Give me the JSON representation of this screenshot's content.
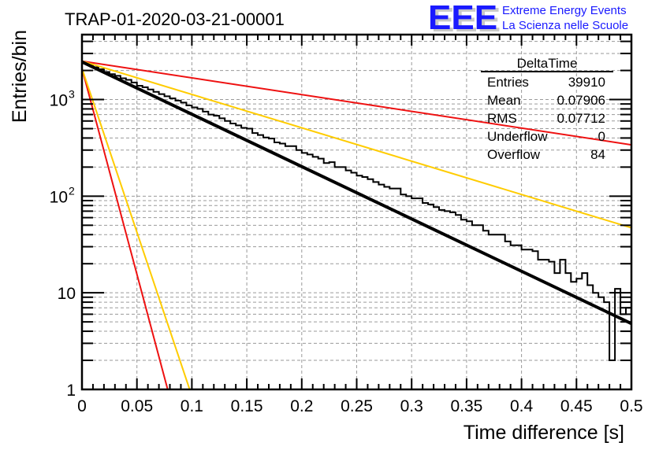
{
  "header": {
    "title": "TRAP-01-2020-03-21-00001",
    "logo_text": "EEE",
    "logo_line1": "Extreme Energy Events",
    "logo_line2": "La Scienza nelle Scuole",
    "logo_color": "#1a1aff"
  },
  "stats_box": {
    "name": "DeltaTime",
    "rows": [
      {
        "label": "Entries",
        "value": "39910"
      },
      {
        "label": "Mean",
        "value": "0.07906"
      },
      {
        "label": "RMS",
        "value": "0.07712"
      },
      {
        "label": "Underflow",
        "value": "0"
      },
      {
        "label": "Overflow",
        "value": "84"
      }
    ]
  },
  "chart_data": {
    "type": "line",
    "title": "TRAP-01-2020-03-21-00001",
    "xlabel": "Time difference [s]",
    "ylabel": "Entries/bin",
    "xlim": [
      0,
      0.5
    ],
    "ylim": [
      1,
      4700
    ],
    "yscale": "log",
    "grid": true,
    "x_tick_labels": [
      "0",
      "0.05",
      "0.1",
      "0.15",
      "0.2",
      "0.25",
      "0.3",
      "0.35",
      "0.4",
      "0.45",
      "0.5"
    ],
    "y_tick_labels": [
      {
        "value": 1,
        "label": "1"
      },
      {
        "value": 10,
        "label": "10"
      },
      {
        "value": 100,
        "label": "10",
        "sup": "2"
      },
      {
        "value": 1000,
        "label": "10",
        "sup": "3"
      }
    ],
    "histogram": {
      "name": "DeltaTime",
      "bin_width": 0.005,
      "x_start": 0,
      "color": "#000000",
      "values": [
        2380,
        2270,
        2160,
        2060,
        1930,
        1830,
        1760,
        1660,
        1600,
        1500,
        1390,
        1340,
        1270,
        1200,
        1140,
        1080,
        1030,
        975,
        930,
        870,
        830,
        800,
        750,
        700,
        680,
        640,
        600,
        565,
        540,
        510,
        500,
        450,
        430,
        405,
        395,
        360,
        350,
        330,
        330,
        300,
        280,
        270,
        255,
        245,
        220,
        225,
        200,
        200,
        185,
        175,
        163,
        158,
        150,
        140,
        132,
        125,
        120,
        120,
        104,
        100,
        95,
        95,
        85,
        82,
        77,
        72,
        70,
        68,
        64,
        57,
        55,
        50,
        50,
        44,
        40,
        40,
        40,
        34,
        31,
        31,
        28,
        28,
        27,
        22,
        22,
        21,
        16,
        22,
        16,
        13,
        14,
        16,
        12,
        10,
        9,
        8,
        2,
        11,
        6,
        7
      ]
    },
    "fit_lines": [
      {
        "name": "fit",
        "color": "#000000",
        "points": [
          [
            0,
            2450
          ],
          [
            0.5,
            4.8
          ]
        ]
      },
      {
        "name": "upper-red",
        "color": "#ee1111",
        "points": [
          [
            0,
            2500
          ],
          [
            0.5,
            340
          ]
        ]
      },
      {
        "name": "upper-yellow",
        "color": "#ffcc00",
        "points": [
          [
            0,
            2500
          ],
          [
            0.5,
            47
          ]
        ]
      },
      {
        "name": "steep-red",
        "color": "#ee1111",
        "points": [
          [
            0,
            2100
          ],
          [
            0.078,
            1
          ]
        ]
      },
      {
        "name": "steep-yellow",
        "color": "#ffcc00",
        "points": [
          [
            0,
            2100
          ],
          [
            0.098,
            1
          ]
        ]
      }
    ]
  }
}
